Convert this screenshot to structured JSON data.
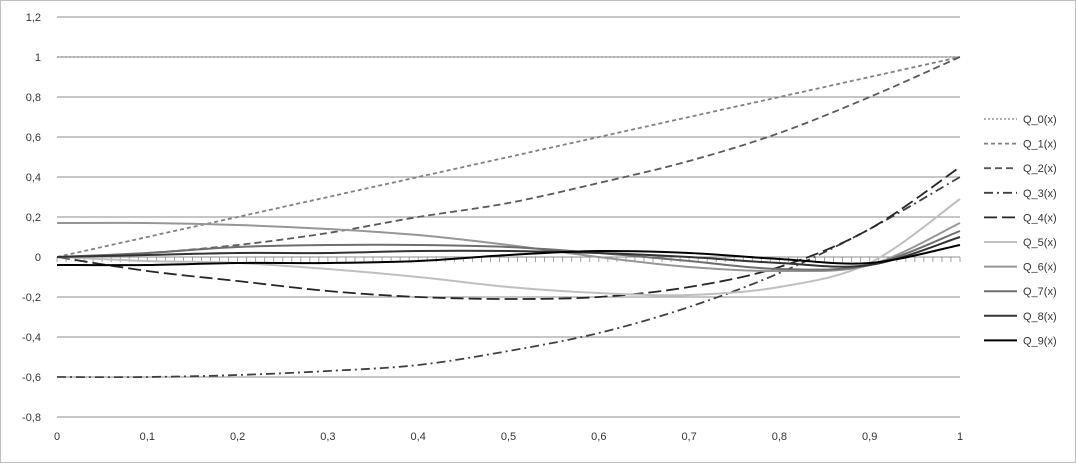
{
  "chart_data": {
    "type": "line",
    "title": "",
    "xlabel": "",
    "ylabel": "",
    "xlim": [
      0,
      1
    ],
    "ylim": [
      -0.8,
      1.2
    ],
    "x_ticks": [
      0,
      0.1,
      0.2,
      0.3,
      0.4,
      0.5,
      0.6,
      0.7,
      0.8,
      0.9,
      1
    ],
    "x_tick_labels": [
      "0",
      "0,1",
      "0,2",
      "0,3",
      "0,4",
      "0,5",
      "0,6",
      "0,7",
      "0,8",
      "0,9",
      "1"
    ],
    "y_ticks": [
      -0.8,
      -0.6,
      -0.4,
      -0.2,
      0,
      0.2,
      0.4,
      0.6,
      0.8,
      1,
      1.2
    ],
    "y_tick_labels": [
      "-0,8",
      "-0,6",
      "-0,4",
      "-0,2",
      "0",
      "0,2",
      "0,4",
      "0,6",
      "0,8",
      "1",
      "1,2"
    ],
    "grid": "horizontal",
    "legend_position": "right",
    "x": [
      0,
      0.1,
      0.2,
      0.3,
      0.4,
      0.5,
      0.6,
      0.7,
      0.8,
      0.9,
      1
    ],
    "series": [
      {
        "name": "Q_0(x)",
        "color": "#a6a6a6",
        "dash": "dotted",
        "values": [
          1,
          1,
          1,
          1,
          1,
          1,
          1,
          1,
          1,
          1,
          1
        ]
      },
      {
        "name": "Q_1(x)",
        "color": "#808080",
        "dash": "short-dash",
        "values": [
          0,
          0.1,
          0.2,
          0.3,
          0.4,
          0.5,
          0.6,
          0.7,
          0.8,
          0.9,
          1
        ]
      },
      {
        "name": "Q_2(x)",
        "color": "#595959",
        "dash": "dash",
        "values": [
          0,
          0.02,
          0.06,
          0.12,
          0.2,
          0.27,
          0.37,
          0.48,
          0.62,
          0.8,
          1
        ]
      },
      {
        "name": "Q_3(x)",
        "color": "#404040",
        "dash": "dash-dot",
        "values": [
          -0.6,
          -0.6,
          -0.59,
          -0.57,
          -0.54,
          -0.47,
          -0.38,
          -0.25,
          -0.08,
          0.14,
          0.4
        ]
      },
      {
        "name": "Q_4(x)",
        "color": "#262626",
        "dash": "long-dash",
        "values": [
          0,
          -0.07,
          -0.12,
          -0.17,
          -0.2,
          -0.21,
          -0.2,
          -0.15,
          -0.05,
          0.14,
          0.45
        ]
      },
      {
        "name": "Q_5(x)",
        "color": "#bfbfbf",
        "dash": "solid",
        "values": [
          0,
          -0.02,
          -0.03,
          -0.06,
          -0.1,
          -0.15,
          -0.18,
          -0.19,
          -0.15,
          -0.03,
          0.29
        ]
      },
      {
        "name": "Q_6(x)",
        "color": "#969696",
        "dash": "solid",
        "values": [
          0.17,
          0.17,
          0.16,
          0.14,
          0.11,
          0.06,
          0.0,
          -0.05,
          -0.07,
          -0.04,
          0.17
        ]
      },
      {
        "name": "Q_7(x)",
        "color": "#6e6e6e",
        "dash": "solid",
        "values": [
          0,
          0.02,
          0.05,
          0.06,
          0.06,
          0.05,
          0.02,
          -0.02,
          -0.06,
          -0.04,
          0.13
        ]
      },
      {
        "name": "Q_8(x)",
        "color": "#333333",
        "dash": "solid",
        "values": [
          0,
          0.01,
          0.02,
          0.02,
          0.03,
          0.03,
          0.02,
          0.0,
          -0.03,
          -0.04,
          0.1
        ]
      },
      {
        "name": "Q_9(x)",
        "color": "#000000",
        "dash": "solid",
        "values": [
          -0.04,
          -0.04,
          -0.03,
          -0.03,
          -0.02,
          0.01,
          0.03,
          0.02,
          -0.01,
          -0.03,
          0.06
        ]
      }
    ]
  }
}
